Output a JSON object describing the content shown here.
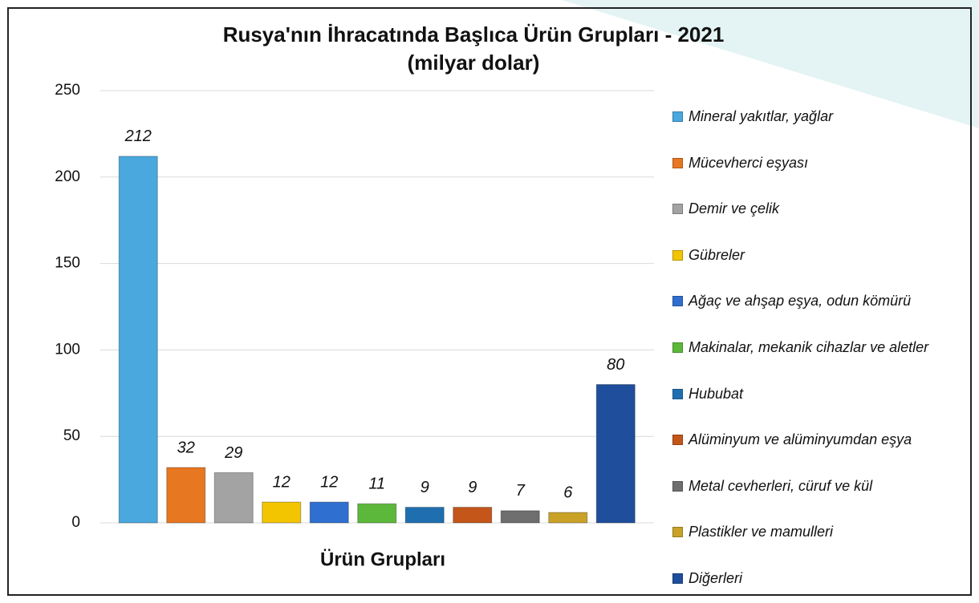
{
  "chart_data": {
    "type": "bar",
    "title": "Rusya'nın İhracatında Başlıca Ürün Grupları - 2021",
    "subtitle": "(milyar dolar)",
    "x_label": "Ürün Grupları",
    "categories": [
      "Mineral yakıtlar, yağlar",
      "Mücevherci eşyası",
      "Demir ve çelik",
      "Gübreler",
      "Ağaç ve ahşap eşya, odun kömürü",
      "Makinalar, mekanik cihazlar ve aletler",
      "Hububat",
      "Alüminyum ve alüminyumdan eşya",
      "Metal cevherleri, cüruf ve kül",
      "Plastikler ve mamulleri",
      "Diğerleri"
    ],
    "values": [
      212,
      32,
      29,
      12,
      12,
      11,
      9,
      9,
      7,
      6,
      80
    ],
    "colors": [
      "#4aa8de",
      "#e87722",
      "#a3a3a3",
      "#f2c500",
      "#2f6fcf",
      "#5cb83a",
      "#1f6fb0",
      "#c4561a",
      "#6e6e6e",
      "#c9a227",
      "#1f4e9c"
    ],
    "ylim": [
      0,
      250
    ],
    "yticks": [
      0,
      50,
      100,
      150,
      200,
      250
    ],
    "grid": true,
    "legend": "right"
  }
}
